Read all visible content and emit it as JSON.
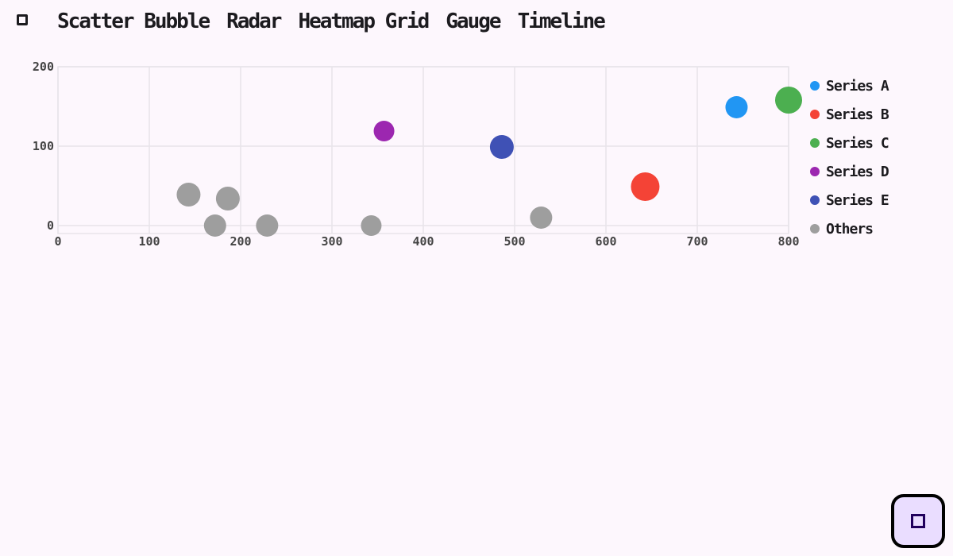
{
  "tabs": [
    {
      "label": "Scatter Bubble"
    },
    {
      "label": "Radar"
    },
    {
      "label": "Heatmap Grid"
    },
    {
      "label": "Gauge"
    },
    {
      "label": "Timeline"
    }
  ],
  "icons": {
    "menu": "menu-icon",
    "fab": "square-icon"
  },
  "colors": {
    "background": "#fdf7fd",
    "grid": "#e8e4ea",
    "axis_text": "#444444",
    "fab_bg": "#eaddff"
  },
  "chart_data": {
    "type": "scatter",
    "xlim": [
      0,
      800
    ],
    "ylim": [
      -10,
      200
    ],
    "xticks": [
      0,
      100,
      200,
      300,
      400,
      500,
      600,
      700,
      800
    ],
    "xtick_labels": [
      "0",
      "100",
      "200",
      "300",
      "400",
      "500",
      "600",
      "700",
      "800"
    ],
    "yticks": [
      0,
      100,
      200
    ],
    "ytick_labels": [
      "0",
      "100",
      "200"
    ],
    "grid": true,
    "legend": "right",
    "series": [
      {
        "name": "Series A",
        "color": "#2196f3",
        "points": [
          {
            "x": 743,
            "y": 149,
            "r": 14
          }
        ]
      },
      {
        "name": "Series B",
        "color": "#f44336",
        "points": [
          {
            "x": 643,
            "y": 49,
            "r": 18
          }
        ]
      },
      {
        "name": "Series C",
        "color": "#4caf50",
        "points": [
          {
            "x": 800,
            "y": 158,
            "r": 17
          }
        ]
      },
      {
        "name": "Series D",
        "color": "#9c27b0",
        "points": [
          {
            "x": 357,
            "y": 119,
            "r": 13
          }
        ]
      },
      {
        "name": "Series E",
        "color": "#3f51b5",
        "points": [
          {
            "x": 486,
            "y": 99,
            "r": 15
          }
        ]
      },
      {
        "name": "Others",
        "color": "#9e9e9e",
        "points": [
          {
            "x": 143,
            "y": 39,
            "r": 15
          },
          {
            "x": 186,
            "y": 34,
            "r": 15
          },
          {
            "x": 172,
            "y": 0,
            "r": 14
          },
          {
            "x": 229,
            "y": 0,
            "r": 14
          },
          {
            "x": 343,
            "y": 0,
            "r": 13
          },
          {
            "x": 529,
            "y": 10,
            "r": 14
          }
        ]
      }
    ]
  }
}
